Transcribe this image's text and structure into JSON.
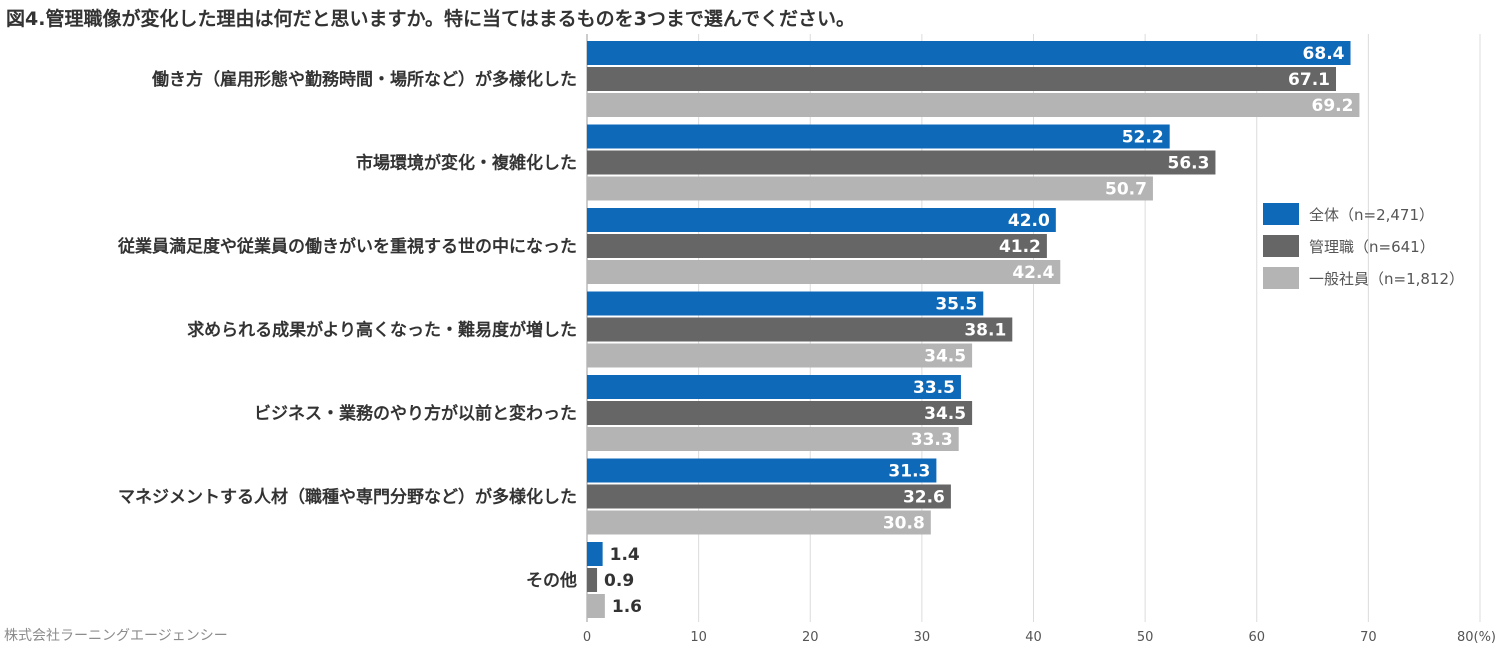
{
  "title": "図4.管理職像が変化した理由は何だと思いますか。特に当てはまるものを3つまで選んでください。",
  "credit": "株式会社ラーニングエージェンシー",
  "chart_data": {
    "type": "bar",
    "orientation": "horizontal",
    "title": "図4.管理職像が変化した理由は何だと思いますか。特に当てはまるものを3つまで選んでください。",
    "categories": [
      "働き方（雇用形態や勤務時間・場所など）が多様化した",
      "市場環境が変化・複雑化した",
      "従業員満足度や従業員の働きがいを重視する世の中になった",
      "求められる成果がより高くなった・難易度が増した",
      "ビジネス・業務のやり方が以前と変わった",
      "マネジメントする人材（職種や専門分野など）が多様化した",
      "その他"
    ],
    "series": [
      {
        "name": "全体（n=2,471）",
        "color": "#0e6ab8",
        "values": [
          68.4,
          52.2,
          42.0,
          35.5,
          33.5,
          31.3,
          1.4
        ],
        "labels": [
          "68.4",
          "52.2",
          "42.0",
          "35.5",
          "33.5",
          "31.3",
          "1.4"
        ]
      },
      {
        "name": "管理職（n=641）",
        "color": "#666666",
        "values": [
          67.1,
          56.3,
          41.2,
          38.1,
          34.5,
          32.6,
          0.9
        ],
        "labels": [
          "67.1",
          "56.3",
          "41.2",
          "38.1",
          "34.5",
          "32.6",
          "0.9"
        ]
      },
      {
        "name": "一般社員（n=1,812）",
        "color": "#b4b4b4",
        "values": [
          69.2,
          50.7,
          42.4,
          34.5,
          33.3,
          30.8,
          1.6
        ],
        "labels": [
          "69.2",
          "50.7",
          "42.4",
          "34.5",
          "33.3",
          "30.8",
          "1.6"
        ]
      }
    ],
    "x_ticks": [
      "0",
      "10",
      "20",
      "30",
      "40",
      "50",
      "60",
      "70",
      "80(%)"
    ],
    "xlim": [
      0,
      80
    ],
    "grid": true,
    "legend_position": "right"
  }
}
